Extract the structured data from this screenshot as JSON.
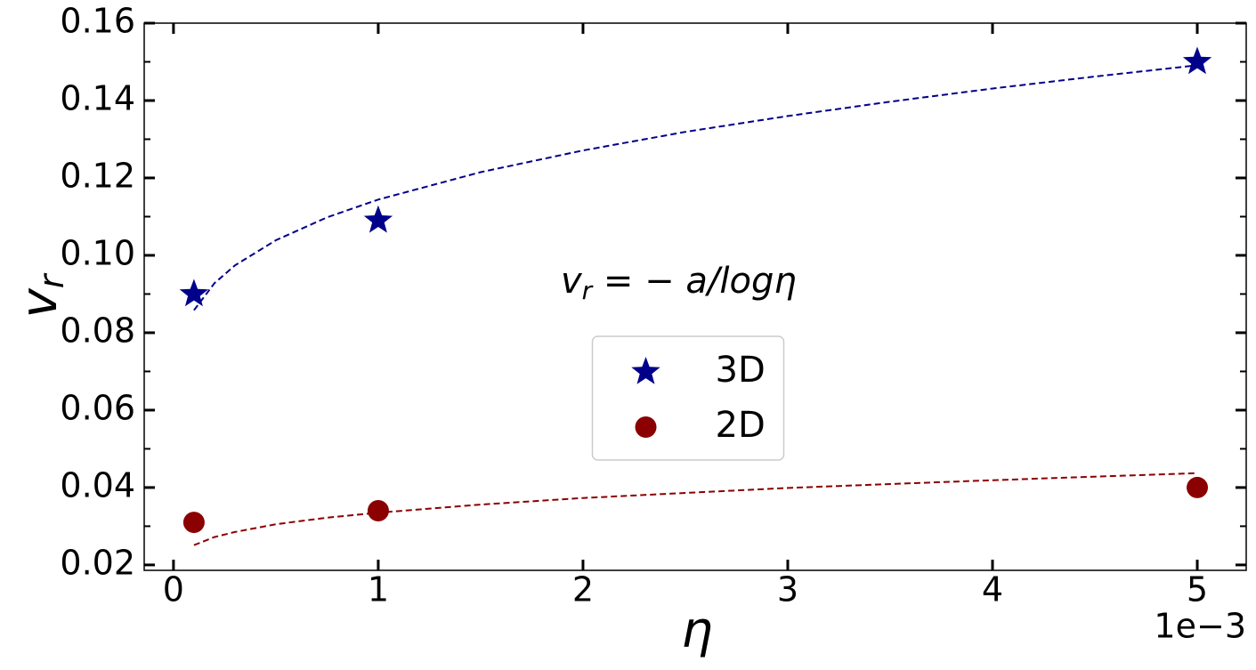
{
  "chart_data": {
    "type": "scatter",
    "xlabel": "η",
    "ylabel": {
      "base": "v",
      "sub": "r"
    },
    "annotation": {
      "base": "v",
      "sub": "r",
      "rest": " = − a/logη"
    },
    "x_offset_label": "1e−3",
    "xlim": [
      -0.000143,
      0.005239
    ],
    "ylim": [
      0.0186,
      0.16
    ],
    "xticks": [
      0,
      {
        "value": 0.001,
        "label": "1"
      },
      {
        "value": 0.002,
        "label": "2"
      },
      {
        "value": 0.003,
        "label": "3"
      },
      {
        "value": 0.004,
        "label": "4"
      },
      {
        "value": 0.005,
        "label": "5"
      }
    ],
    "yticks": [
      {
        "value": 0.02,
        "label": "0.02"
      },
      {
        "value": 0.04,
        "label": "0.04"
      },
      {
        "value": 0.06,
        "label": "0.06"
      },
      {
        "value": 0.08,
        "label": "0.08"
      },
      {
        "value": 0.1,
        "label": "0.10"
      },
      {
        "value": 0.12,
        "label": "0.12"
      },
      {
        "value": 0.14,
        "label": "0.14"
      },
      {
        "value": 0.16,
        "label": "0.16"
      }
    ],
    "yminorticks": [
      0.03,
      0.05,
      0.07,
      0.09,
      0.11,
      0.13,
      0.15
    ],
    "legend": "center",
    "series": [
      {
        "name": "3D",
        "color": "#00008b",
        "marker": "star",
        "x": [
          0.0001,
          0.001,
          0.005
        ],
        "values": [
          0.09,
          0.109,
          0.15
        ]
      },
      {
        "name": "2D",
        "color": "#8b0000",
        "marker": "circle",
        "x": [
          0.0001,
          0.001,
          0.005
        ],
        "values": [
          0.031,
          0.034,
          0.04
        ]
      },
      {
        "color": "#00008b",
        "line": "dashed",
        "x": [
          0.0001,
          0.0002,
          0.0003,
          0.0005,
          0.00075,
          0.001,
          0.0015,
          0.002,
          0.0025,
          0.003,
          0.0035,
          0.004,
          0.0045,
          0.005
        ],
        "values": [
          0.0858,
          0.0928,
          0.0974,
          0.1039,
          0.1098,
          0.1144,
          0.1215,
          0.1271,
          0.1319,
          0.136,
          0.1397,
          0.1431,
          0.1462,
          0.1491
        ]
      },
      {
        "color": "#8b0000",
        "line": "dashed",
        "x": [
          0.0001,
          0.0002,
          0.0003,
          0.0005,
          0.00075,
          0.001,
          0.0015,
          0.002,
          0.0025,
          0.003,
          0.0035,
          0.004,
          0.0045,
          0.005
        ],
        "values": [
          0.0251,
          0.0272,
          0.0285,
          0.0305,
          0.0322,
          0.0335,
          0.0356,
          0.0373,
          0.0386,
          0.0399,
          0.0409,
          0.0419,
          0.0428,
          0.0437
        ]
      }
    ]
  }
}
